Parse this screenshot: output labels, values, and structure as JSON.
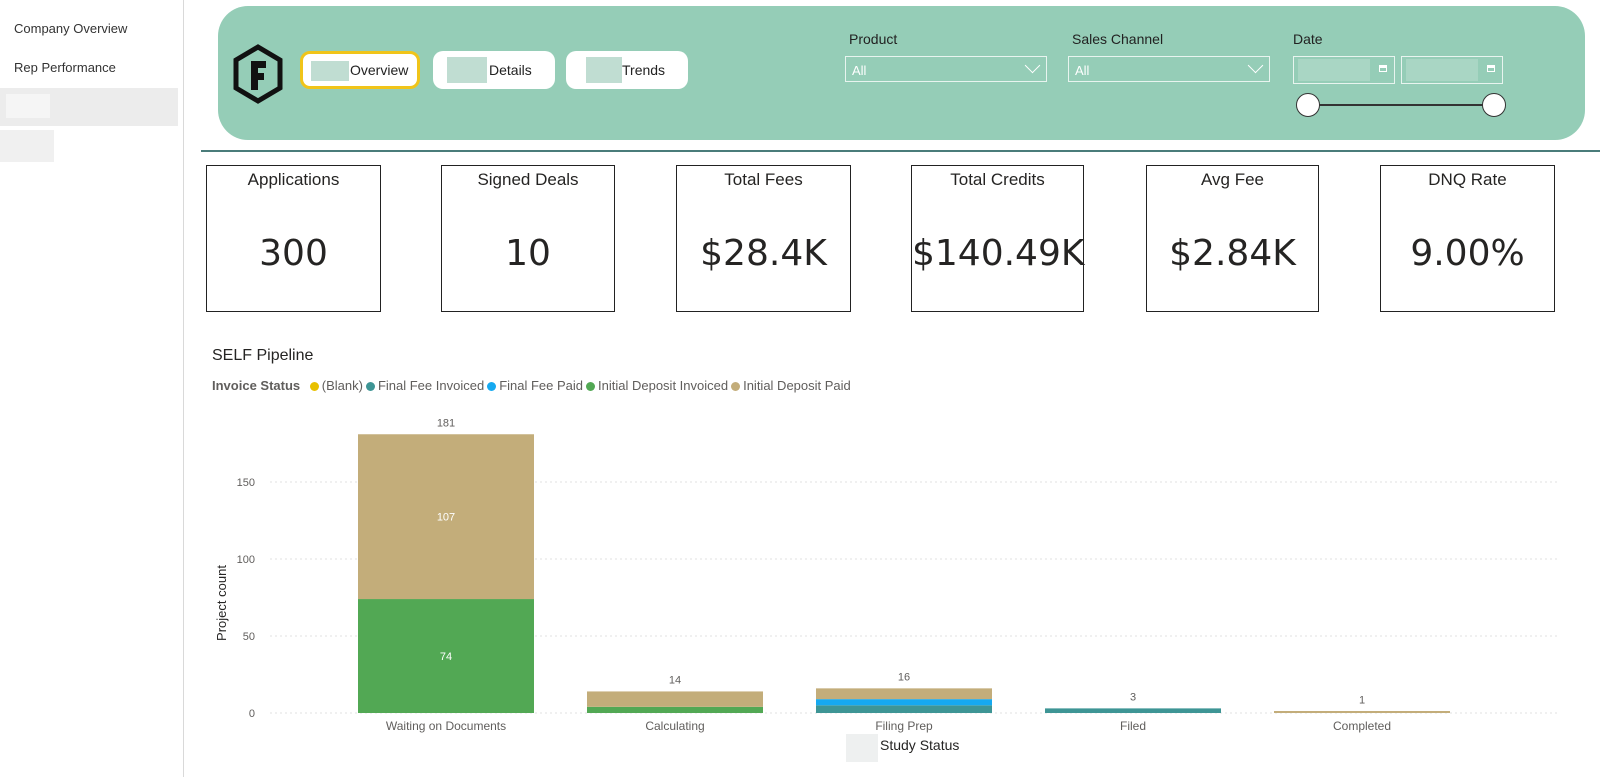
{
  "nav": {
    "items": [
      {
        "label": "Company Overview"
      },
      {
        "label": "Rep Performance"
      }
    ]
  },
  "header": {
    "buttons": [
      {
        "label": "Overview"
      },
      {
        "label": "Details"
      },
      {
        "label": "Trends"
      }
    ],
    "filters": {
      "product": {
        "label": "Product",
        "value": "All"
      },
      "sales_channel": {
        "label": "Sales Channel",
        "value": "All"
      },
      "date": {
        "label": "Date"
      }
    }
  },
  "kpis": [
    {
      "title": "Applications",
      "value": "300"
    },
    {
      "title": "Signed Deals",
      "value": "10"
    },
    {
      "title": "Total Fees",
      "value": "$28.4K"
    },
    {
      "title": "Total Credits",
      "value": "$140.49K"
    },
    {
      "title": "Avg Fee",
      "value": "$2.84K"
    },
    {
      "title": "DNQ Rate",
      "value": "9.00%"
    }
  ],
  "colors": {
    "header_bg": "#95cdb7",
    "active_border": "#f0c419"
  },
  "chart_data": {
    "type": "bar",
    "stacked": true,
    "title": "SELF Pipeline",
    "legend_title": "Invoice Status",
    "legend_position": "top-left",
    "xlabel": "Study Status",
    "ylabel": "Project count",
    "ylim": [
      0,
      181
    ],
    "yticks": [
      0,
      50,
      100,
      150
    ],
    "grid": true,
    "categories": [
      "Waiting on Documents",
      "Calculating",
      "Filing Prep",
      "Filed",
      "Completed"
    ],
    "series": [
      {
        "name": "(Blank)",
        "color": "#e8c000",
        "values": [
          0,
          0,
          0,
          0,
          0
        ]
      },
      {
        "name": "Final Fee Invoiced",
        "color": "#3e9595",
        "values": [
          0,
          0,
          5,
          3,
          0
        ]
      },
      {
        "name": "Final Fee Paid",
        "color": "#16a9f0",
        "values": [
          0,
          0,
          4,
          0,
          0
        ]
      },
      {
        "name": "Initial Deposit Invoiced",
        "color": "#52a854",
        "values": [
          74,
          4,
          0,
          0,
          0
        ]
      },
      {
        "name": "Initial Deposit Paid",
        "color": "#c3ad7a",
        "values": [
          107,
          10,
          7,
          0,
          1
        ]
      }
    ],
    "segment_labels": {
      "Waiting on Documents": {
        "Initial Deposit Invoiced": 74,
        "Initial Deposit Paid": 107
      }
    },
    "totals": [
      181,
      14,
      16,
      3,
      1
    ]
  }
}
